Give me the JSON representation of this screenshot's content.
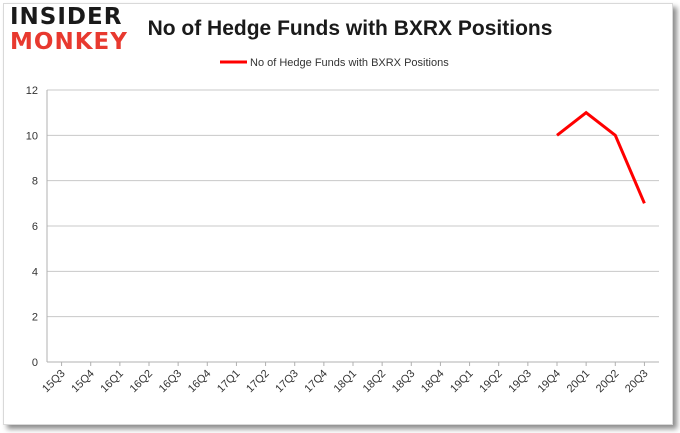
{
  "brand": {
    "line1": "INSIDER",
    "line2": "MONKEY"
  },
  "chart_data": {
    "type": "line",
    "title": "No of Hedge Funds with BXRX Positions",
    "xlabel": "",
    "ylabel": "",
    "categories": [
      "15Q3",
      "15Q4",
      "16Q1",
      "16Q2",
      "16Q3",
      "16Q4",
      "17Q1",
      "17Q2",
      "17Q3",
      "17Q4",
      "18Q1",
      "18Q2",
      "18Q3",
      "18Q4",
      "19Q1",
      "19Q2",
      "19Q3",
      "19Q4",
      "20Q1",
      "20Q2",
      "20Q3"
    ],
    "series": [
      {
        "name": "No of Hedge Funds with BXRX Positions",
        "values": [
          null,
          null,
          null,
          null,
          null,
          null,
          null,
          null,
          null,
          null,
          null,
          null,
          null,
          null,
          null,
          null,
          null,
          10,
          11,
          10,
          7
        ],
        "color": "#ff0000"
      }
    ],
    "ylim": [
      0,
      12
    ],
    "yticks": [
      0,
      2,
      4,
      6,
      8,
      10,
      12
    ],
    "grid": true,
    "legend": "top-center"
  }
}
